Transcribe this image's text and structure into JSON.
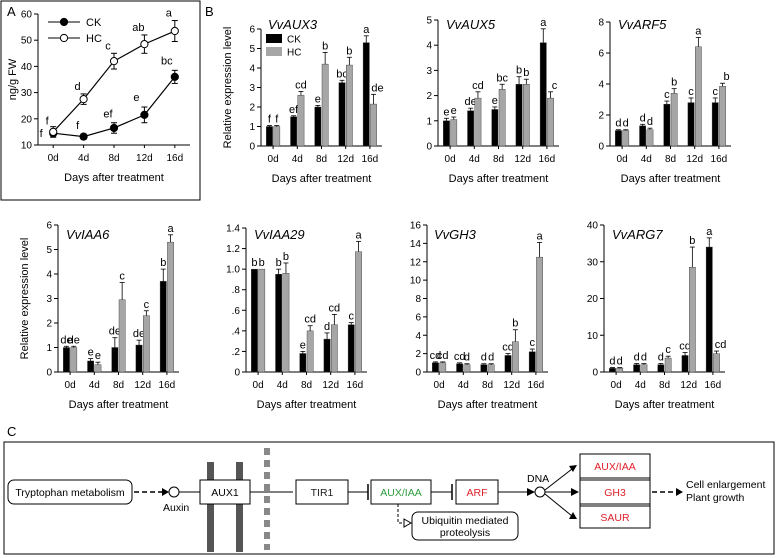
{
  "panel_labels": {
    "a": "A",
    "b": "B",
    "c": "C"
  },
  "chart_data": [
    {
      "id": "A",
      "type": "line",
      "xlabel": "Days after treatment",
      "ylabel": "ng/g FW",
      "categories": [
        "0d",
        "4d",
        "8d",
        "12d",
        "16d"
      ],
      "ylim": [
        10,
        60
      ],
      "yticks": [
        "10",
        "20",
        "30",
        "40",
        "50",
        "60"
      ],
      "series": [
        {
          "name": "CK",
          "values": [
            14.5,
            13.2,
            16.5,
            21.5,
            36
          ],
          "errors": [
            1.5,
            1,
            2,
            3,
            2.5
          ],
          "sig": [
            "f",
            "f",
            "ef",
            "e",
            "bc"
          ]
        },
        {
          "name": "HC",
          "values": [
            15,
            27.5,
            42,
            48.5,
            53.5
          ],
          "errors": [
            2,
            2,
            3,
            3.5,
            4
          ],
          "sig": [
            "",
            "d",
            "c",
            "ab",
            "a"
          ]
        }
      ]
    },
    {
      "id": "VvAUX3",
      "type": "bar",
      "title": "VvAUX3",
      "xlabel": "Days after treatment",
      "ylabel": "Relative expression level",
      "categories": [
        "0d",
        "4d",
        "8d",
        "12d",
        "16d"
      ],
      "ylim": [
        0,
        6
      ],
      "yticks": [
        "0",
        "1",
        "2",
        "3",
        "4",
        "5",
        "6"
      ],
      "series": [
        {
          "name": "CK",
          "values": [
            1,
            1.5,
            2,
            3.25,
            5.3
          ],
          "errors": [
            0.05,
            0.05,
            0.08,
            0.12,
            0.35
          ],
          "sig": [
            "f",
            "ef",
            "e",
            "bc",
            "a"
          ]
        },
        {
          "name": "HC",
          "values": [
            1,
            2.6,
            4.2,
            4.15,
            2.15
          ],
          "errors": [
            0.05,
            0.2,
            0.6,
            0.4,
            0.5
          ],
          "sig": [
            "f",
            "cd",
            "b",
            "b",
            "de"
          ]
        }
      ]
    },
    {
      "id": "VvAUX5",
      "type": "bar",
      "title": "VvAUX5",
      "categories": [
        "0d",
        "4d",
        "8d",
        "12d",
        "16d"
      ],
      "ylim": [
        0,
        5
      ],
      "yticks": [
        "0",
        "1",
        "2",
        "3",
        "4",
        "5"
      ],
      "series": [
        {
          "name": "CK",
          "values": [
            1,
            1.4,
            1.45,
            2.45,
            4.1
          ],
          "errors": [
            0.1,
            0.1,
            0.1,
            0.3,
            0.55
          ],
          "sig": [
            "e",
            "de",
            "e",
            "b",
            "a"
          ]
        },
        {
          "name": "HC",
          "values": [
            1.05,
            1.9,
            2.25,
            2.45,
            1.9
          ],
          "errors": [
            0.1,
            0.25,
            0.2,
            0.2,
            0.25
          ],
          "sig": [
            "e",
            "cd",
            "bc",
            "b",
            "c"
          ]
        }
      ]
    },
    {
      "id": "VvARF5",
      "type": "bar",
      "title": "VvARF5",
      "categories": [
        "0d",
        "4d",
        "8d",
        "12d",
        "16d"
      ],
      "ylim": [
        0,
        8
      ],
      "yticks": [
        "0",
        "2",
        "4",
        "6",
        "8"
      ],
      "series": [
        {
          "name": "CK",
          "values": [
            1,
            1.3,
            2.7,
            2.8,
            2.8
          ],
          "errors": [
            0.05,
            0.1,
            0.2,
            0.3,
            0.3
          ],
          "sig": [
            "d",
            "d",
            "c",
            "c",
            "c"
          ]
        },
        {
          "name": "HC",
          "values": [
            1,
            1.05,
            3.4,
            6.4,
            3.85
          ],
          "errors": [
            0.05,
            0.1,
            0.3,
            0.6,
            0.2
          ],
          "sig": [
            "d",
            "d",
            "b",
            "a",
            "b"
          ]
        }
      ]
    },
    {
      "id": "VvIAA6",
      "type": "bar",
      "title": "VvIAA6",
      "xlabel": "Days after treatment",
      "ylabel": "Relative expression level",
      "categories": [
        "0d",
        "4d",
        "8d",
        "12d",
        "16d"
      ],
      "ylim": [
        0,
        6
      ],
      "yticks": [
        "0",
        "1",
        "2",
        "3",
        "4",
        "5",
        "6"
      ],
      "series": [
        {
          "name": "CK",
          "values": [
            1,
            0.45,
            1,
            1.1,
            3.7
          ],
          "errors": [
            0.05,
            0.1,
            0.4,
            0.2,
            0.5
          ],
          "sig": [
            "de",
            "e",
            "de",
            "de",
            "b"
          ]
        },
        {
          "name": "HC",
          "values": [
            1,
            0.3,
            2.95,
            2.3,
            5.3
          ],
          "errors": [
            0.05,
            0.1,
            0.7,
            0.2,
            0.3
          ],
          "sig": [
            "de",
            "e",
            "c",
            "c",
            "a"
          ]
        }
      ]
    },
    {
      "id": "VvIAA29",
      "type": "bar",
      "title": "VvIAA29",
      "categories": [
        "0d",
        "4d",
        "8d",
        "12d",
        "16d"
      ],
      "ylim": [
        0,
        1.4
      ],
      "yticks": [
        "0",
        ".2",
        ".4",
        ".6",
        ".8",
        "1.0",
        "1.2",
        "1.4"
      ],
      "series": [
        {
          "name": "CK",
          "values": [
            1.0,
            0.95,
            0.18,
            0.32,
            0.46
          ],
          "errors": [
            0.0,
            0.05,
            0.02,
            0.06,
            0.02
          ],
          "sig": [
            "b",
            "b",
            "e",
            "d",
            "c"
          ]
        },
        {
          "name": "HC",
          "values": [
            1.0,
            0.96,
            0.4,
            0.46,
            1.17
          ],
          "errors": [
            0.0,
            0.1,
            0.05,
            0.1,
            0.1
          ],
          "sig": [
            "b",
            "b",
            "cd",
            "cd",
            "a"
          ]
        }
      ]
    },
    {
      "id": "VvGH3",
      "type": "bar",
      "title": "VvGH3",
      "categories": [
        "0d",
        "4d",
        "8d",
        "12d",
        "16d"
      ],
      "ylim": [
        0,
        16
      ],
      "yticks": [
        "0",
        "2",
        "4",
        "6",
        "8",
        "10",
        "12",
        "14",
        "16"
      ],
      "series": [
        {
          "name": "CK",
          "values": [
            1.0,
            0.9,
            0.8,
            1.8,
            2.2
          ],
          "errors": [
            0.1,
            0.1,
            0.1,
            0.2,
            0.3
          ],
          "sig": [
            "cd",
            "cd",
            "d",
            "cd",
            "c"
          ]
        },
        {
          "name": "HC",
          "values": [
            1.0,
            0.8,
            0.8,
            3.3,
            12.5
          ],
          "errors": [
            0.1,
            0.1,
            0.1,
            1.3,
            1.6
          ],
          "sig": [
            "cd",
            "d",
            "d",
            "b",
            "a"
          ]
        }
      ]
    },
    {
      "id": "VvARG7",
      "type": "bar",
      "title": "VvARG7",
      "categories": [
        "0d",
        "4d",
        "8d",
        "12d",
        "16d"
      ],
      "ylim": [
        0,
        40
      ],
      "yticks": [
        "0",
        "10",
        "20",
        "30",
        "40"
      ],
      "series": [
        {
          "name": "CK",
          "values": [
            1,
            2,
            2,
            4.5,
            34
          ],
          "errors": [
            0.2,
            0.3,
            0.3,
            0.8,
            2.5
          ],
          "sig": [
            "d",
            "d",
            "d",
            "cd",
            "a"
          ]
        },
        {
          "name": "HC",
          "values": [
            1,
            2,
            3.8,
            28.5,
            5
          ],
          "errors": [
            0.2,
            0.3,
            0.5,
            5.5,
            0.7
          ],
          "sig": [
            "d",
            "d",
            "c",
            "b",
            "cd"
          ]
        }
      ]
    }
  ],
  "legend": {
    "ck": "CK",
    "hc": "HC"
  },
  "colors": {
    "ck": "#000000",
    "hc": "#a6a6a6",
    "pathway_red": "#e0202a",
    "pathway_green": "#2e9e3e",
    "pathway_dark": "#1d1d1d"
  },
  "pathway": {
    "tryptophan": "Tryptophan metabolism",
    "auxin": "Auxin",
    "aux1": "AUX1",
    "tir1": "TIR1",
    "aux_iaa": "AUX/IAA",
    "arf": "ARF",
    "dna": "DNA",
    "ubiquitin_line1": "Ubiquitin mediated",
    "ubiquitin_line2": "proteolysis",
    "out_aux_iaa": "AUX/IAA",
    "out_gh3": "GH3",
    "out_saur": "SAUR",
    "result_line1": "Cell enlargement",
    "result_line2": "Plant growth"
  }
}
